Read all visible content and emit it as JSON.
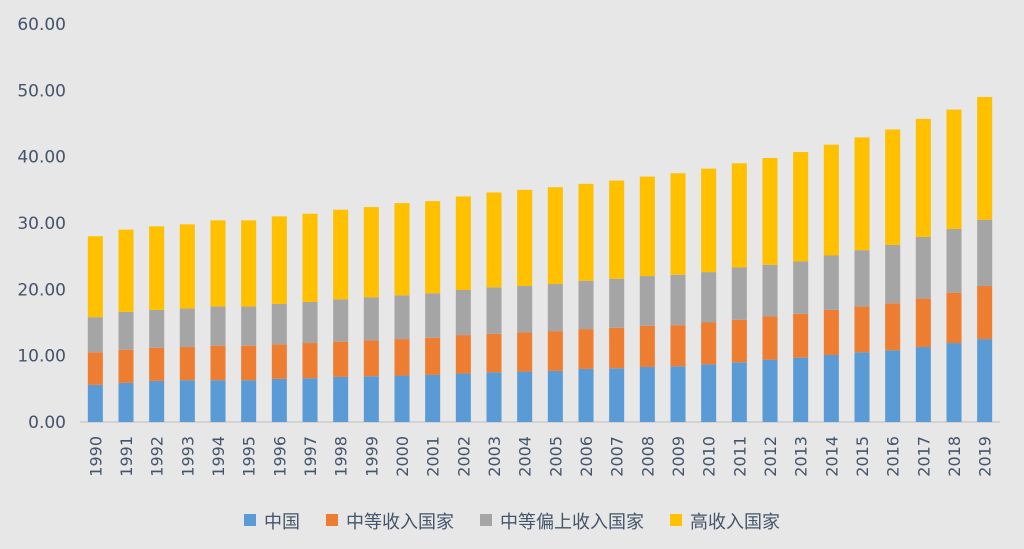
{
  "chart_data": {
    "type": "bar",
    "stacked": true,
    "title": "",
    "xlabel": "",
    "ylabel": "",
    "ylim": [
      0,
      60
    ],
    "yticks": [
      0,
      10,
      20,
      30,
      40,
      50,
      60
    ],
    "ytick_labels": [
      "0.00",
      "10.00",
      "20.00",
      "30.00",
      "40.00",
      "50.00",
      "60.00"
    ],
    "grid": false,
    "legend_position": "bottom",
    "categories": [
      "1990",
      "1991",
      "1992",
      "1993",
      "1994",
      "1995",
      "1996",
      "1997",
      "1998",
      "1999",
      "2000",
      "2001",
      "2002",
      "2003",
      "2004",
      "2005",
      "2006",
      "2007",
      "2008",
      "2009",
      "2010",
      "2011",
      "2012",
      "2013",
      "2014",
      "2015",
      "2016",
      "2017",
      "2018",
      "2019"
    ],
    "series": [
      {
        "name": "中国",
        "color": "#5b9bd5",
        "values": [
          5.6,
          5.9,
          6.2,
          6.3,
          6.3,
          6.3,
          6.5,
          6.6,
          6.8,
          6.9,
          7.0,
          7.1,
          7.3,
          7.5,
          7.6,
          7.7,
          8.0,
          8.1,
          8.3,
          8.4,
          8.7,
          9.0,
          9.4,
          9.7,
          10.1,
          10.5,
          10.8,
          11.3,
          11.9,
          12.5
        ]
      },
      {
        "name": "中等收入国家",
        "color": "#ed7d31",
        "values": [
          4.9,
          5.0,
          5.0,
          5.0,
          5.2,
          5.2,
          5.2,
          5.3,
          5.3,
          5.4,
          5.5,
          5.6,
          5.8,
          5.8,
          5.9,
          6.0,
          6.0,
          6.1,
          6.2,
          6.2,
          6.3,
          6.4,
          6.5,
          6.6,
          6.8,
          6.9,
          7.1,
          7.3,
          7.6,
          8.0
        ]
      },
      {
        "name": "中等偏上收入国家",
        "color": "#a5a5a5",
        "values": [
          5.3,
          5.7,
          5.7,
          5.8,
          5.9,
          5.9,
          6.1,
          6.2,
          6.4,
          6.5,
          6.6,
          6.7,
          6.8,
          7.0,
          7.0,
          7.1,
          7.3,
          7.4,
          7.5,
          7.6,
          7.6,
          7.9,
          7.8,
          7.9,
          8.2,
          8.5,
          8.8,
          9.3,
          9.6,
          10.0
        ]
      },
      {
        "name": "高收入国家",
        "color": "#ffc000",
        "values": [
          12.2,
          12.4,
          12.6,
          12.7,
          13.0,
          13.0,
          13.2,
          13.3,
          13.5,
          13.6,
          13.9,
          13.9,
          14.1,
          14.3,
          14.5,
          14.6,
          14.6,
          14.8,
          15.0,
          15.3,
          15.6,
          15.7,
          16.1,
          16.5,
          16.7,
          17.0,
          17.4,
          17.8,
          18.0,
          18.5
        ]
      }
    ]
  }
}
